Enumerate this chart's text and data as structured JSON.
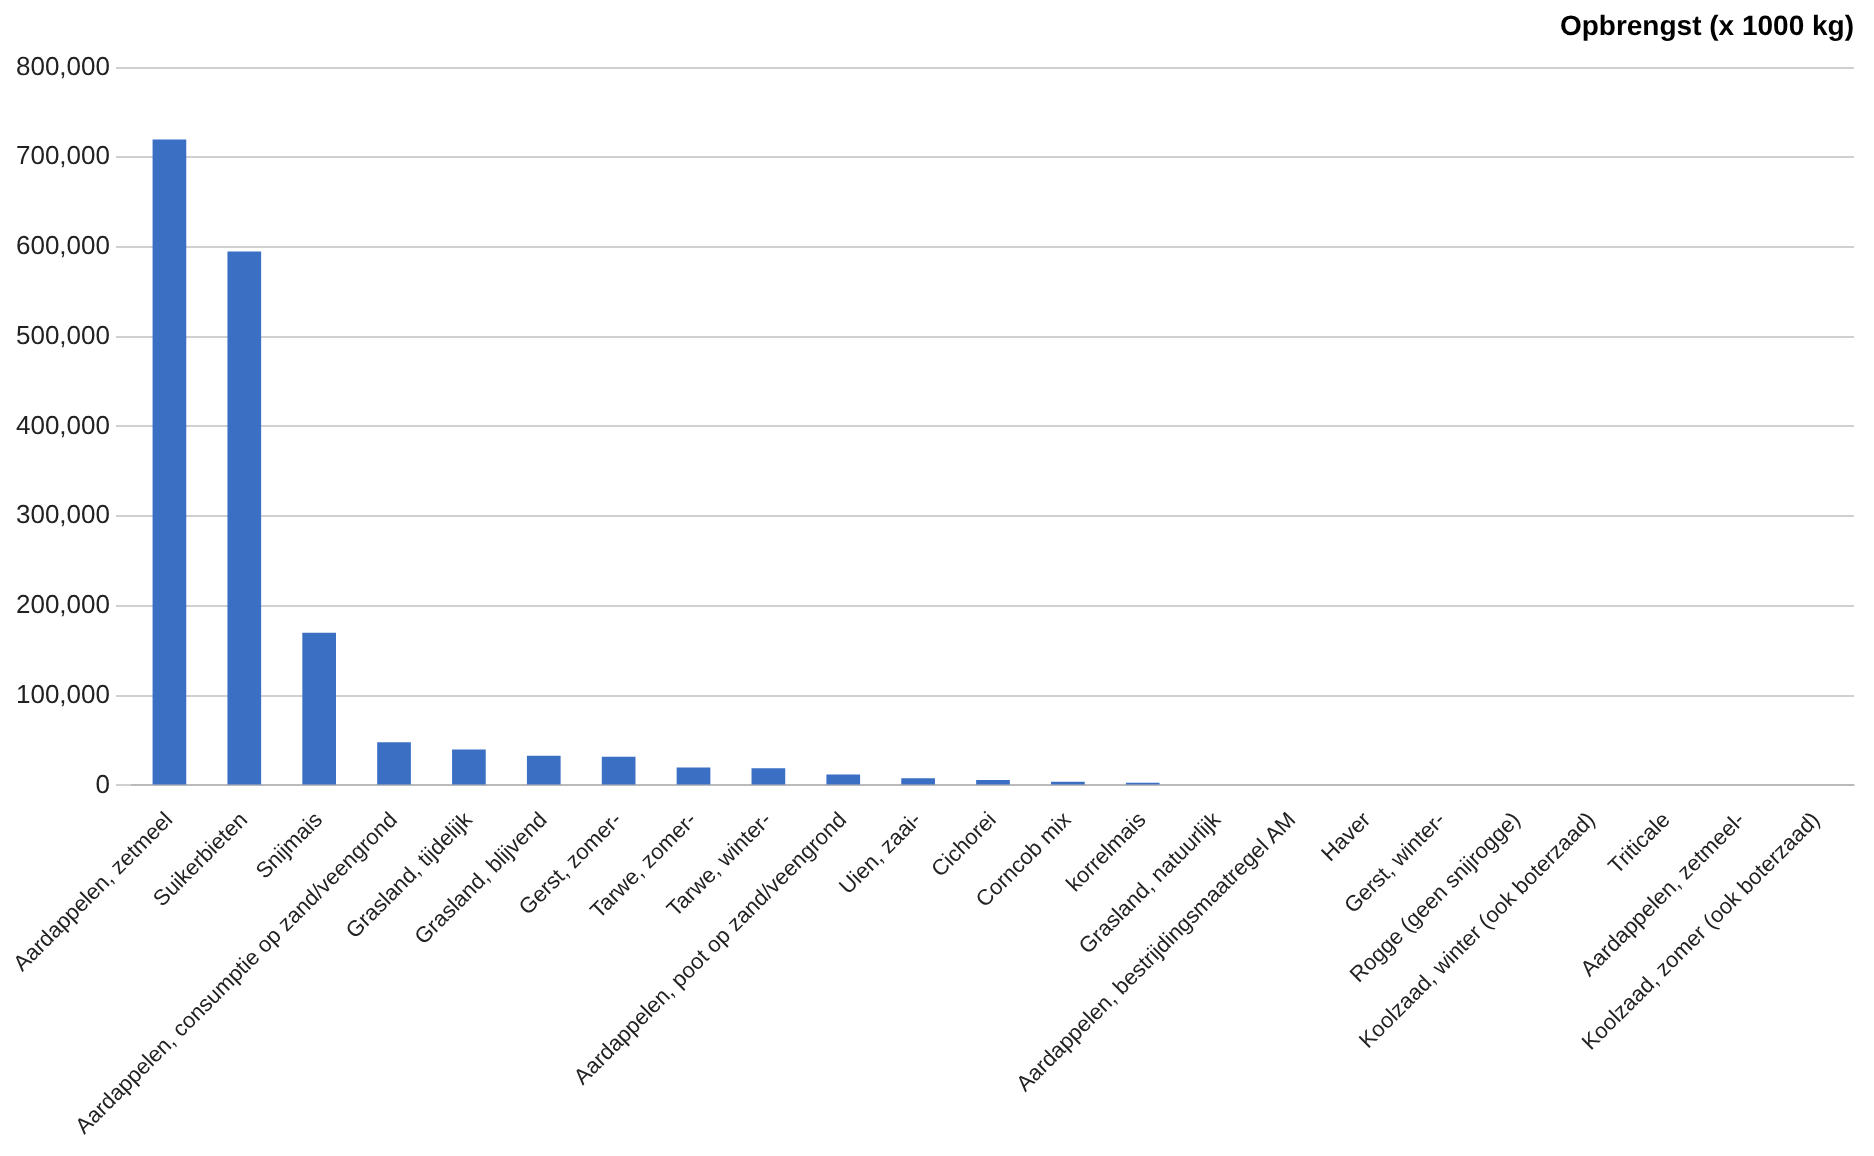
{
  "chart_data": {
    "type": "bar",
    "title": "Opbrengst (x 1000 kg)",
    "categories": [
      "Aardappelen, zetmeel",
      "Suikerbieten",
      "Snijmais",
      "Aardappelen, consumptie op zand/veengrond",
      "Grasland, tijdelijk",
      "Grasland, blijvend",
      "Gerst, zomer-",
      "Tarwe, zomer-",
      "Tarwe, winter-",
      "Aardappelen, poot op zand/veengrond",
      "Uien, zaai-",
      "Cichorei",
      "Corncob mix",
      "korrelmais",
      "Grasland, natuurlijk",
      "Aardappelen, bestrijdingsmaatregel AM",
      "Haver",
      "Gerst, winter-",
      "Rogge (geen snijrogge)",
      "Koolzaad, winter (ook boterzaad)",
      "Triticale",
      "Aardappelen, zetmeel-",
      "Koolzaad, zomer (ook boterzaad)"
    ],
    "values": [
      720000,
      595000,
      170000,
      48000,
      40000,
      33000,
      32000,
      20000,
      19000,
      12000,
      8000,
      6000,
      4000,
      3000,
      0,
      0,
      0,
      0,
      0,
      0,
      0,
      0,
      0
    ],
    "color": "#3a6fc4",
    "ylim": [
      0,
      800000
    ],
    "yticks": [
      {
        "value": 0,
        "label": "0"
      },
      {
        "value": 100000,
        "label": "100,000"
      },
      {
        "value": 200000,
        "label": "200,000"
      },
      {
        "value": 300000,
        "label": "300,000"
      },
      {
        "value": 400000,
        "label": "400,000"
      },
      {
        "value": 500000,
        "label": "500,000"
      },
      {
        "value": 600000,
        "label": "600,000"
      },
      {
        "value": 700000,
        "label": "700,000"
      },
      {
        "value": 800000,
        "label": "800,000"
      }
    ],
    "grid": "y"
  }
}
